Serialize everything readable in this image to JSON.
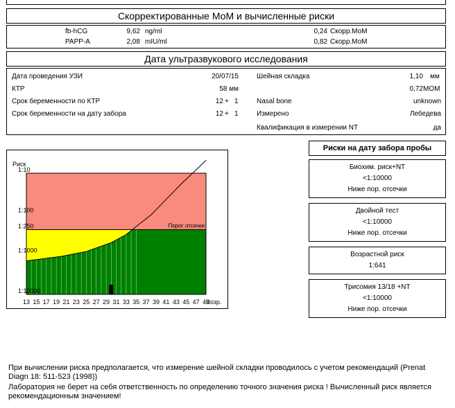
{
  "header1": "Скорректированные МоМ и вычисленные риски",
  "markers": [
    {
      "name": "fb-hCG",
      "value": "9,62",
      "unit": "ng/ml",
      "mom": "0,24",
      "mom_label": "Скорр.МоМ"
    },
    {
      "name": "PAPP-A",
      "value": "2,08",
      "unit": "mIU/ml",
      "mom": "0,82",
      "mom_label": "Скорр.МоМ"
    }
  ],
  "header2": "Дата ультразвукового исследования",
  "us": {
    "date_label": "Дата проведения УЗИ",
    "date_value": "20/07/15",
    "ktp_label": "КТР",
    "ktp_value": "58 мм",
    "ga_ktp_label": "Срок беременности по КТР",
    "ga_ktp_w": "12",
    "ga_ktp_plus": "+",
    "ga_ktp_d": "1",
    "ga_draw_label": "Срок беременности на дату забора",
    "ga_draw_w": "12",
    "ga_draw_plus": "+",
    "ga_draw_d": "1",
    "nt_label": "Шейная складка",
    "nt_value": "1,10",
    "nt_unit": "мм",
    "nt_mom": "0,72",
    "nt_mom_unit": "MOM",
    "nasal_label": "Nasal bone",
    "nasal_value": "unknown",
    "measured_label": "Измерено",
    "measured_value": "Лебедева",
    "qual_label": "Квалификация в измерении NT",
    "qual_value": "да"
  },
  "risks_title": "Риски на дату забора пробы",
  "risks": [
    {
      "title": "Биохим. риск+NT",
      "value": "<1:10000",
      "status": "Ниже пор. отсечки"
    },
    {
      "title": "Двойной тест",
      "value": "<1:10000",
      "status": "Ниже пор. отсечки"
    },
    {
      "title": "Возрастной риск",
      "value": "1:641"
    },
    {
      "title": "Трисомия 13/18 +NT",
      "value": "<1:10000",
      "status": "Ниже пор. отсечки"
    }
  ],
  "chart_data": {
    "type": "area",
    "ylabel": "Риск",
    "xlabel": "Возр.",
    "y_ticks": [
      "1:10",
      "1:100",
      "1:250",
      "1:1000",
      "1:10000"
    ],
    "x_ticks": [
      13,
      15,
      17,
      19,
      21,
      23,
      25,
      27,
      29,
      31,
      33,
      35,
      37,
      39,
      41,
      43,
      45,
      47,
      49
    ],
    "cutoff_label": "Порог отсечки",
    "cutoff_risk": "1:250",
    "age_curve": [
      {
        "age": 13,
        "risk_log10": 3.17
      },
      {
        "age": 20,
        "risk_log10": 3.06
      },
      {
        "age": 25,
        "risk_log10": 2.94
      },
      {
        "age": 30,
        "risk_log10": 2.72
      },
      {
        "age": 33,
        "risk_log10": 2.52
      },
      {
        "age": 35,
        "risk_log10": 2.32
      },
      {
        "age": 38,
        "risk_log10": 2.03
      },
      {
        "age": 41,
        "risk_log10": 1.65
      },
      {
        "age": 44,
        "risk_log10": 1.27
      },
      {
        "age": 47,
        "risk_log10": 0.92
      },
      {
        "age": 49,
        "risk_log10": 0.68
      }
    ],
    "patient": {
      "age": 30,
      "risk": "<1:10000"
    },
    "colors": {
      "high": "#f88a7e",
      "mid": "#ffff00",
      "low": "#008000"
    }
  },
  "note1": "При вычислении риска предполагается, что измерение шейной складки проводилось с учетом рекомендаций (Prenat Diagn 18: 511-523 (1998))",
  "note2": "Лаборатория не берет на себя ответственность по определению точного значения риска ! Вычисленный риск является рекомендационным значением!"
}
